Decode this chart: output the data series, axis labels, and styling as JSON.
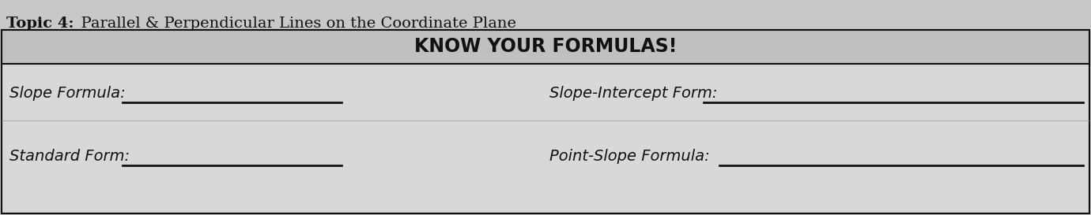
{
  "title_bold": "Topic 4:",
  "title_rest": "  Parallel & Perpendicular Lines on the Coordinate Plane",
  "header": "KNOW YOUR FORMULAS!",
  "label_slope": "Slope Formula:",
  "label_slope_intercept": "Slope-Intercept Form:",
  "label_standard": "Standard Form:",
  "label_point_slope": "Point-Slope Formula:",
  "bg_color": "#c8c8c8",
  "outer_box_color": "#d4d4d4",
  "header_bg": "#c0c0c0",
  "content_bg": "#d8d8d8",
  "line_color": "#111111",
  "text_color": "#111111",
  "title_fontsize": 14,
  "header_fontsize": 17,
  "label_fontsize": 14,
  "underline_color": "#111111"
}
